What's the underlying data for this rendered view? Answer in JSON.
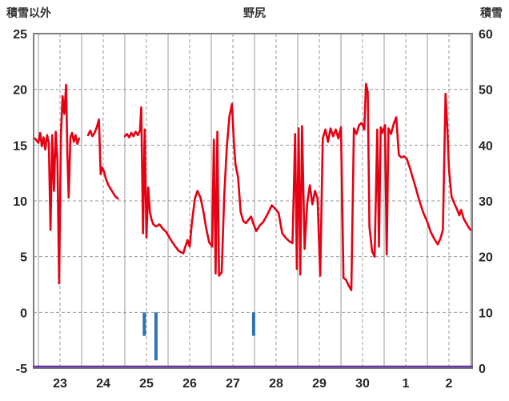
{
  "chart_data": {
    "type": "line",
    "title": "野尻",
    "left_axis": {
      "label": "積雪以外",
      "min": -5,
      "max": 25,
      "ticks": [
        25,
        20,
        15,
        10,
        5,
        0,
        -5
      ]
    },
    "right_axis": {
      "label": "積雪",
      "min": 0,
      "max": 60,
      "ticks": [
        60,
        50,
        40,
        30,
        20,
        10,
        0
      ]
    },
    "x_axis": {
      "labels": [
        "23",
        "24",
        "25",
        "26",
        "27",
        "28",
        "29",
        "30",
        "1",
        "2"
      ],
      "note": "labels at mid-day positions, solid gridlines at day boundaries"
    },
    "series": [
      {
        "name": "snow-depth",
        "color": "#6633aa",
        "type": "line",
        "axis": "right",
        "width": 2.5,
        "points": [
          [
            22.89,
            0
          ],
          [
            33.03,
            0
          ]
        ]
      },
      {
        "name": "precipitation-bars",
        "color": "#2e74b5",
        "type": "bar",
        "axis": "left",
        "baseline": 0,
        "bars": [
          {
            "day": 25.45,
            "value": -2.1
          },
          {
            "day": 25.72,
            "value": -4.3
          },
          {
            "day": 27.98,
            "value": -2.1
          }
        ]
      },
      {
        "name": "temperature",
        "color": "#e60012",
        "type": "line",
        "axis": "left",
        "width": 2.6,
        "points": [
          [
            22.92,
            15.6
          ],
          [
            23.0,
            15.2
          ],
          [
            23.04,
            16.1
          ],
          [
            23.08,
            14.9
          ],
          [
            23.12,
            15.7
          ],
          [
            23.16,
            14.6
          ],
          [
            23.2,
            15.9
          ],
          [
            23.24,
            15.2
          ],
          [
            23.28,
            7.4
          ],
          [
            23.32,
            15.9
          ],
          [
            23.36,
            10.9
          ],
          [
            23.4,
            16.2
          ],
          [
            23.44,
            13.5
          ],
          [
            23.48,
            2.6
          ],
          [
            23.52,
            15.8
          ],
          [
            23.56,
            19.4
          ],
          [
            23.6,
            17.8
          ],
          [
            23.64,
            20.4
          ],
          [
            23.67,
            14.2
          ],
          [
            23.7,
            10.3
          ],
          [
            23.74,
            15.7
          ],
          [
            23.78,
            16.1
          ],
          [
            23.82,
            15.3
          ],
          [
            23.86,
            15.9
          ],
          [
            23.9,
            15.1
          ],
          [
            23.94,
            15.6
          ],
          null,
          [
            24.15,
            15.9
          ],
          [
            24.2,
            16.3
          ],
          [
            24.25,
            15.8
          ],
          [
            24.3,
            16.1
          ],
          [
            24.35,
            16.6
          ],
          [
            24.4,
            17.3
          ],
          [
            24.44,
            12.4
          ],
          [
            24.48,
            13.0
          ],
          [
            24.52,
            12.6
          ],
          [
            24.56,
            12.0
          ],
          [
            24.62,
            11.4
          ],
          [
            24.7,
            10.9
          ],
          [
            24.78,
            10.4
          ],
          [
            24.84,
            10.2
          ],
          null,
          [
            25.0,
            15.8
          ],
          [
            25.05,
            16.0
          ],
          [
            25.1,
            15.7
          ],
          [
            25.15,
            16.1
          ],
          [
            25.2,
            15.8
          ],
          [
            25.25,
            16.2
          ],
          [
            25.3,
            15.9
          ],
          [
            25.35,
            16.3
          ],
          [
            25.38,
            18.4
          ],
          [
            25.42,
            7.1
          ],
          [
            25.46,
            16.4
          ],
          [
            25.5,
            6.7
          ],
          [
            25.54,
            11.2
          ],
          [
            25.58,
            9.0
          ],
          [
            25.62,
            8.3
          ],
          [
            25.66,
            7.9
          ],
          [
            25.72,
            7.7
          ],
          [
            25.8,
            7.9
          ],
          [
            25.88,
            7.5
          ],
          [
            25.96,
            7.2
          ],
          [
            26.05,
            6.6
          ],
          [
            26.15,
            6.0
          ],
          [
            26.25,
            5.5
          ],
          [
            26.35,
            5.3
          ],
          [
            26.45,
            6.5
          ],
          [
            26.5,
            5.9
          ],
          [
            26.55,
            8.0
          ],
          [
            26.62,
            10.2
          ],
          [
            26.68,
            10.9
          ],
          [
            26.75,
            10.3
          ],
          [
            26.82,
            9.0
          ],
          [
            26.88,
            7.6
          ],
          [
            26.95,
            6.3
          ],
          [
            27.02,
            5.9
          ],
          [
            27.06,
            15.5
          ],
          [
            27.1,
            3.5
          ],
          [
            27.14,
            16.2
          ],
          [
            27.18,
            3.3
          ],
          [
            27.24,
            3.6
          ],
          [
            27.3,
            10.5
          ],
          [
            27.36,
            14.8
          ],
          [
            27.42,
            17.6
          ],
          [
            27.48,
            18.7
          ],
          [
            27.52,
            15.4
          ],
          [
            27.56,
            13.3
          ],
          [
            27.62,
            12.1
          ],
          [
            27.68,
            9.0
          ],
          [
            27.74,
            8.2
          ],
          [
            27.8,
            8.0
          ],
          [
            27.86,
            8.3
          ],
          [
            27.92,
            8.6
          ],
          [
            27.98,
            7.9
          ],
          [
            28.04,
            7.3
          ],
          [
            28.12,
            7.8
          ],
          [
            28.2,
            8.1
          ],
          [
            28.3,
            8.8
          ],
          [
            28.4,
            9.6
          ],
          [
            28.48,
            9.3
          ],
          [
            28.56,
            8.9
          ],
          [
            28.64,
            7.1
          ],
          [
            28.72,
            6.7
          ],
          [
            28.8,
            6.4
          ],
          [
            28.88,
            6.2
          ],
          [
            28.94,
            16.0
          ],
          [
            28.98,
            3.9
          ],
          [
            29.02,
            16.5
          ],
          [
            29.06,
            3.4
          ],
          [
            29.1,
            16.7
          ],
          [
            29.16,
            5.7
          ],
          [
            29.22,
            9.8
          ],
          [
            29.28,
            11.4
          ],
          [
            29.34,
            9.7
          ],
          [
            29.4,
            10.9
          ],
          [
            29.46,
            10.2
          ],
          [
            29.52,
            3.3
          ],
          [
            29.58,
            15.6
          ],
          [
            29.64,
            16.4
          ],
          [
            29.7,
            15.3
          ],
          [
            29.76,
            16.5
          ],
          [
            29.82,
            15.8
          ],
          [
            29.88,
            16.4
          ],
          [
            29.94,
            15.6
          ],
          [
            30.0,
            16.6
          ],
          [
            30.06,
            3.1
          ],
          [
            30.12,
            2.9
          ],
          [
            30.18,
            2.4
          ],
          [
            30.24,
            2.0
          ],
          [
            30.3,
            16.5
          ],
          [
            30.36,
            16.0
          ],
          [
            30.42,
            16.8
          ],
          [
            30.48,
            17.0
          ],
          [
            30.54,
            16.4
          ],
          [
            30.58,
            20.5
          ],
          [
            30.62,
            19.8
          ],
          [
            30.66,
            7.7
          ],
          [
            30.72,
            5.5
          ],
          [
            30.78,
            5.0
          ],
          [
            30.84,
            16.4
          ],
          [
            30.88,
            5.9
          ],
          [
            30.92,
            16.6
          ],
          [
            30.96,
            16.1
          ],
          [
            31.02,
            16.8
          ],
          [
            31.06,
            5.2
          ],
          [
            31.1,
            16.5
          ],
          [
            31.16,
            16.0
          ],
          [
            31.22,
            16.9
          ],
          [
            31.28,
            17.5
          ],
          [
            31.34,
            14.1
          ],
          [
            31.4,
            13.9
          ],
          [
            31.46,
            14.0
          ],
          [
            31.52,
            13.8
          ],
          [
            31.6,
            12.9
          ],
          [
            31.7,
            11.6
          ],
          [
            31.8,
            10.2
          ],
          [
            31.9,
            9.0
          ],
          [
            32.0,
            8.1
          ],
          [
            32.08,
            7.2
          ],
          [
            32.16,
            6.6
          ],
          [
            32.24,
            6.1
          ],
          [
            32.3,
            6.6
          ],
          [
            32.36,
            7.4
          ],
          [
            32.42,
            19.6
          ],
          [
            32.46,
            16.8
          ],
          [
            32.5,
            12.8
          ],
          [
            32.56,
            10.4
          ],
          [
            32.62,
            9.8
          ],
          [
            32.68,
            9.3
          ],
          [
            32.74,
            8.7
          ],
          [
            32.78,
            9.2
          ],
          [
            32.84,
            8.4
          ],
          [
            32.9,
            8.0
          ],
          [
            32.96,
            7.6
          ],
          [
            33.0,
            7.4
          ]
        ]
      }
    ]
  }
}
